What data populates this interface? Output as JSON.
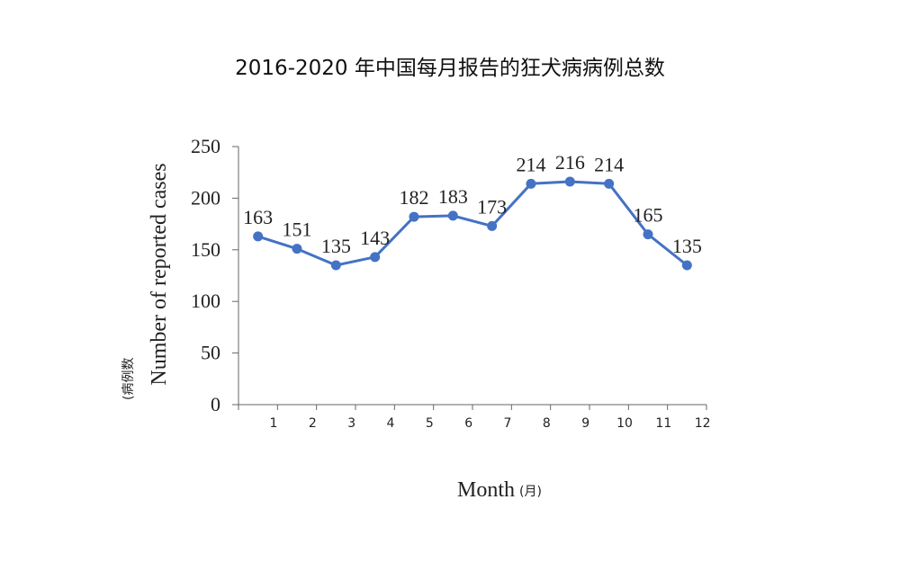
{
  "chart_data": {
    "type": "line",
    "title": "2016-2020 年中国每月报告的狂犬病病例总数",
    "xlabel": "Month",
    "xlabel_unit": "(月)",
    "ylabel": "Number of reported cases",
    "ylabel_unit": "(病例数",
    "categories": [
      "1",
      "2",
      "3",
      "4",
      "5",
      "6",
      "7",
      "8",
      "9",
      "10",
      "11",
      "12"
    ],
    "yticks": [
      "0",
      "50",
      "100",
      "150",
      "200",
      "250"
    ],
    "ylim": [
      0,
      250
    ],
    "series": [
      {
        "values": [
          163,
          151,
          135,
          143,
          182,
          183,
          173,
          214,
          216,
          214,
          165,
          135
        ]
      }
    ],
    "grid": false,
    "legend": "none",
    "line_color": "#4472C4"
  }
}
